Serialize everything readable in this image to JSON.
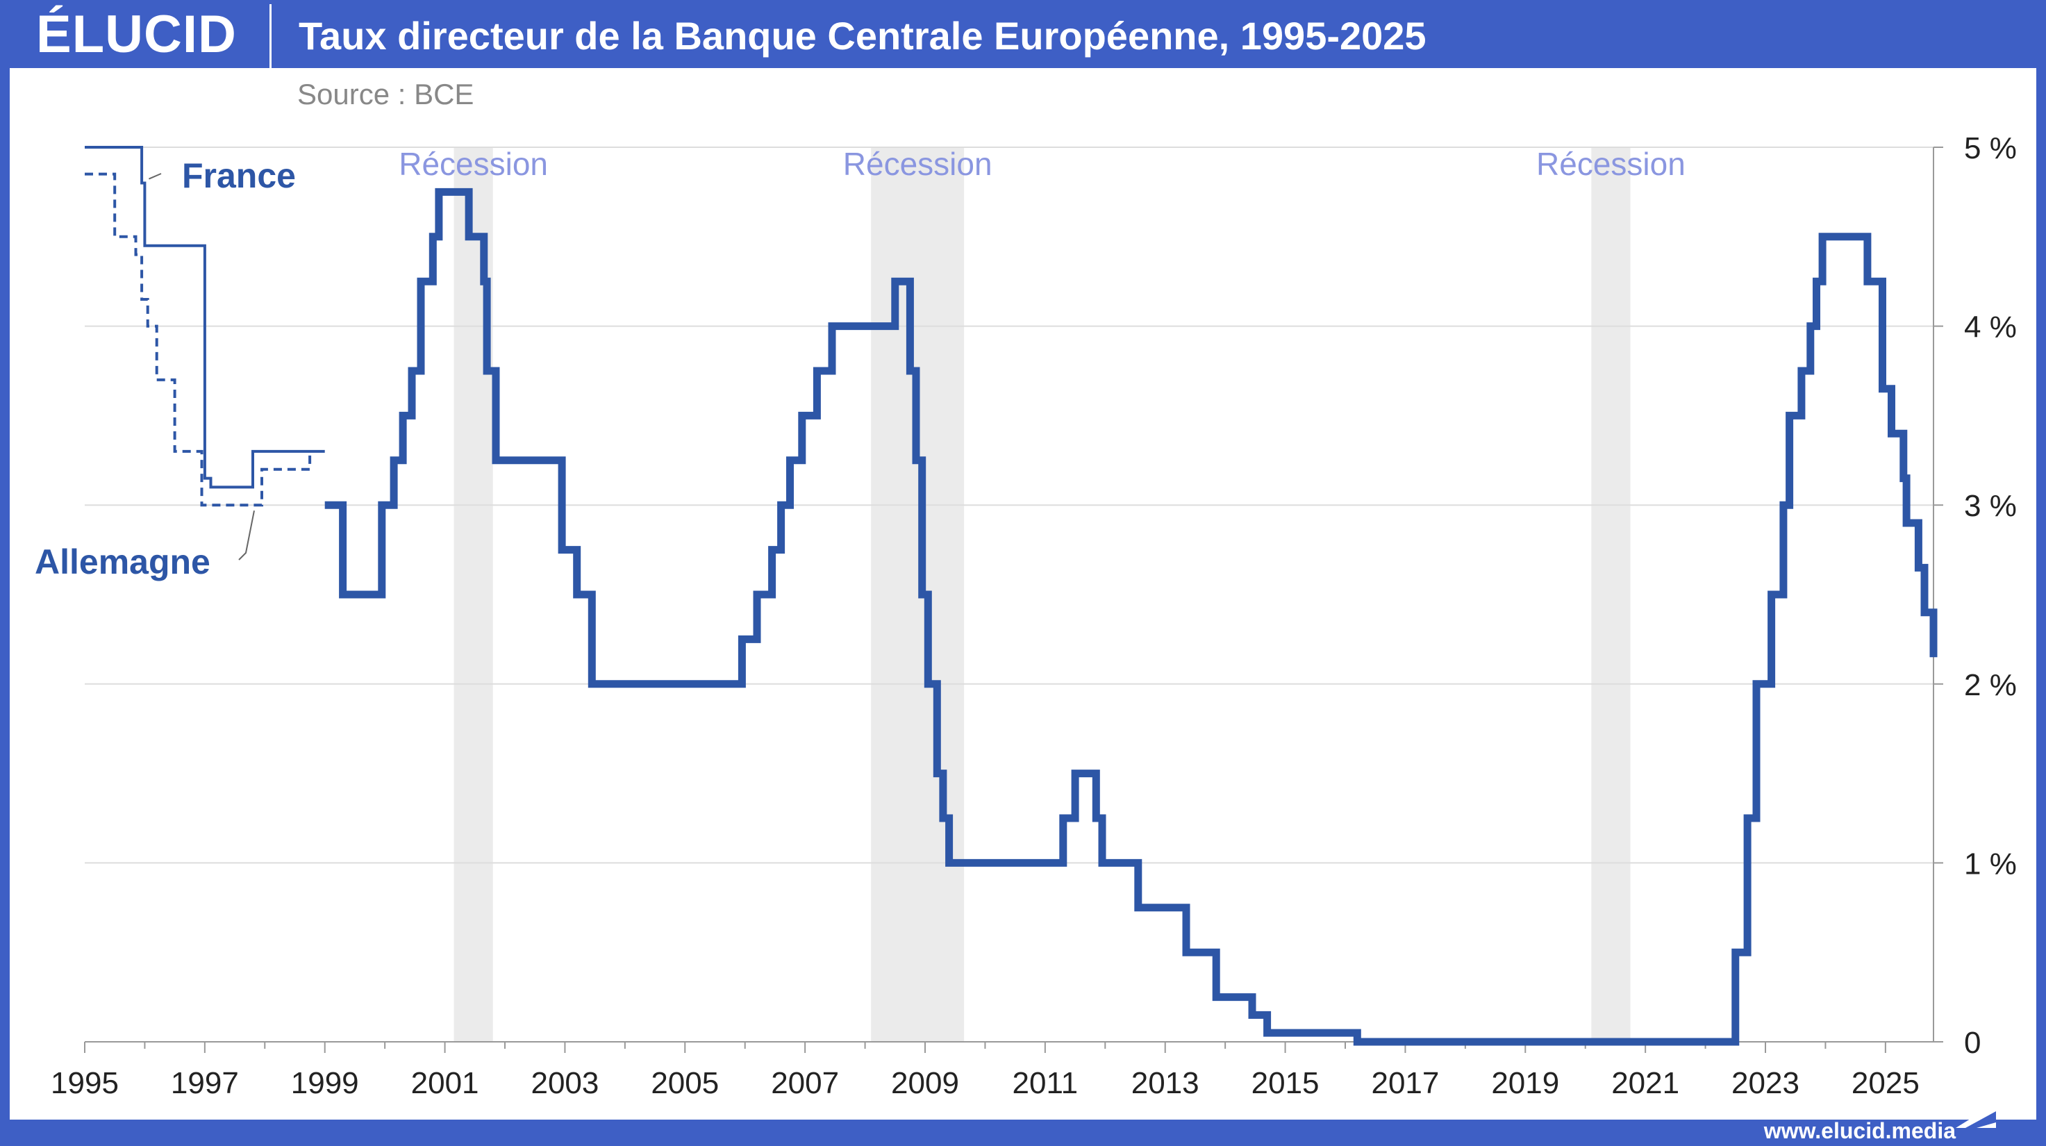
{
  "header": {
    "logo": "ÉLUCID",
    "title": "Taux directeur de la Banque Centrale Européenne, 1995-2025",
    "source": "Source : BCE"
  },
  "footer": {
    "url": "www.elucid.media"
  },
  "colors": {
    "frame": "#3e5fc5",
    "line": "#2d56a6",
    "recession_band": "#ebebeb",
    "recession_label": "#8a96e0",
    "grid": "#dddddd",
    "text": "#222222"
  },
  "chart_data": {
    "type": "line",
    "title": "Taux directeur de la Banque Centrale Européenne, 1995-2025",
    "xlim": [
      1995,
      2025.8
    ],
    "ylim": [
      0,
      5
    ],
    "x_ticks": [
      1995,
      1997,
      1999,
      2001,
      2003,
      2005,
      2007,
      2009,
      2011,
      2013,
      2015,
      2017,
      2019,
      2021,
      2023,
      2025
    ],
    "y_ticks": [
      {
        "value": 0,
        "label": "0"
      },
      {
        "value": 1,
        "label": "1 %"
      },
      {
        "value": 2,
        "label": "2 %"
      },
      {
        "value": 3,
        "label": "3 %"
      },
      {
        "value": 4,
        "label": "4 %"
      },
      {
        "value": 5,
        "label": "5 %"
      }
    ],
    "grid": true,
    "recessions": [
      {
        "start": 2001.15,
        "end": 2001.8,
        "label": "Récession"
      },
      {
        "start": 2008.1,
        "end": 2009.65,
        "label": "Récession"
      },
      {
        "start": 2020.1,
        "end": 2020.75,
        "label": "Récession"
      }
    ],
    "series": [
      {
        "name": "France",
        "style": "thin",
        "points": [
          [
            1995.0,
            5.0
          ],
          [
            1995.95,
            5.0
          ],
          [
            1995.95,
            4.8
          ],
          [
            1996.0,
            4.8
          ],
          [
            1996.0,
            4.45
          ],
          [
            1997.0,
            4.45
          ],
          [
            1997.0,
            3.15
          ],
          [
            1997.1,
            3.15
          ],
          [
            1997.1,
            3.1
          ],
          [
            1997.8,
            3.1
          ],
          [
            1997.8,
            3.3
          ],
          [
            1999.0,
            3.3
          ]
        ]
      },
      {
        "name": "Allemagne",
        "style": "dashed",
        "points": [
          [
            1995.0,
            4.85
          ],
          [
            1995.5,
            4.85
          ],
          [
            1995.5,
            4.5
          ],
          [
            1995.85,
            4.5
          ],
          [
            1995.85,
            4.4
          ],
          [
            1995.95,
            4.4
          ],
          [
            1995.95,
            4.15
          ],
          [
            1996.05,
            4.15
          ],
          [
            1996.05,
            4.0
          ],
          [
            1996.2,
            4.0
          ],
          [
            1996.2,
            3.7
          ],
          [
            1996.5,
            3.7
          ],
          [
            1996.5,
            3.3
          ],
          [
            1996.95,
            3.3
          ],
          [
            1996.95,
            3.0
          ],
          [
            1997.95,
            3.0
          ],
          [
            1997.95,
            3.2
          ],
          [
            1998.75,
            3.2
          ],
          [
            1998.75,
            3.3
          ]
        ]
      },
      {
        "name": "BCE",
        "style": "thick",
        "points": [
          [
            1999.0,
            3.0
          ],
          [
            1999.3,
            3.0
          ],
          [
            1999.3,
            2.5
          ],
          [
            1999.95,
            2.5
          ],
          [
            1999.95,
            3.0
          ],
          [
            2000.15,
            3.0
          ],
          [
            2000.15,
            3.25
          ],
          [
            2000.3,
            3.25
          ],
          [
            2000.3,
            3.5
          ],
          [
            2000.45,
            3.5
          ],
          [
            2000.45,
            3.75
          ],
          [
            2000.6,
            3.75
          ],
          [
            2000.6,
            4.25
          ],
          [
            2000.8,
            4.25
          ],
          [
            2000.8,
            4.5
          ],
          [
            2000.9,
            4.5
          ],
          [
            2000.9,
            4.75
          ],
          [
            2001.4,
            4.75
          ],
          [
            2001.4,
            4.5
          ],
          [
            2001.65,
            4.5
          ],
          [
            2001.65,
            4.25
          ],
          [
            2001.7,
            4.25
          ],
          [
            2001.7,
            3.75
          ],
          [
            2001.85,
            3.75
          ],
          [
            2001.85,
            3.25
          ],
          [
            2002.95,
            3.25
          ],
          [
            2002.95,
            2.75
          ],
          [
            2003.2,
            2.75
          ],
          [
            2003.2,
            2.5
          ],
          [
            2003.45,
            2.5
          ],
          [
            2003.45,
            2.0
          ],
          [
            2005.95,
            2.0
          ],
          [
            2005.95,
            2.25
          ],
          [
            2006.2,
            2.25
          ],
          [
            2006.2,
            2.5
          ],
          [
            2006.45,
            2.5
          ],
          [
            2006.45,
            2.75
          ],
          [
            2006.6,
            2.75
          ],
          [
            2006.6,
            3.0
          ],
          [
            2006.75,
            3.0
          ],
          [
            2006.75,
            3.25
          ],
          [
            2006.95,
            3.25
          ],
          [
            2006.95,
            3.5
          ],
          [
            2007.2,
            3.5
          ],
          [
            2007.2,
            3.75
          ],
          [
            2007.45,
            3.75
          ],
          [
            2007.45,
            4.0
          ],
          [
            2008.5,
            4.0
          ],
          [
            2008.5,
            4.25
          ],
          [
            2008.75,
            4.25
          ],
          [
            2008.75,
            3.75
          ],
          [
            2008.85,
            3.75
          ],
          [
            2008.85,
            3.25
          ],
          [
            2008.95,
            3.25
          ],
          [
            2008.95,
            2.5
          ],
          [
            2009.05,
            2.5
          ],
          [
            2009.05,
            2.0
          ],
          [
            2009.2,
            2.0
          ],
          [
            2009.2,
            1.5
          ],
          [
            2009.3,
            1.5
          ],
          [
            2009.3,
            1.25
          ],
          [
            2009.4,
            1.25
          ],
          [
            2009.4,
            1.0
          ],
          [
            2011.3,
            1.0
          ],
          [
            2011.3,
            1.25
          ],
          [
            2011.5,
            1.25
          ],
          [
            2011.5,
            1.5
          ],
          [
            2011.85,
            1.5
          ],
          [
            2011.85,
            1.25
          ],
          [
            2011.95,
            1.25
          ],
          [
            2011.95,
            1.0
          ],
          [
            2012.55,
            1.0
          ],
          [
            2012.55,
            0.75
          ],
          [
            2013.35,
            0.75
          ],
          [
            2013.35,
            0.5
          ],
          [
            2013.85,
            0.5
          ],
          [
            2013.85,
            0.25
          ],
          [
            2014.45,
            0.25
          ],
          [
            2014.45,
            0.15
          ],
          [
            2014.7,
            0.15
          ],
          [
            2014.7,
            0.05
          ],
          [
            2016.2,
            0.05
          ],
          [
            2016.2,
            0.0
          ],
          [
            2022.5,
            0.0
          ],
          [
            2022.5,
            0.5
          ],
          [
            2022.7,
            0.5
          ],
          [
            2022.7,
            1.25
          ],
          [
            2022.85,
            1.25
          ],
          [
            2022.85,
            2.0
          ],
          [
            2022.95,
            2.0
          ],
          [
            2022.95,
            2.0
          ],
          [
            2023.1,
            2.0
          ],
          [
            2023.1,
            2.5
          ],
          [
            2023.3,
            2.5
          ],
          [
            2023.3,
            3.0
          ],
          [
            2023.4,
            3.0
          ],
          [
            2023.4,
            3.5
          ],
          [
            2023.6,
            3.5
          ],
          [
            2023.6,
            3.75
          ],
          [
            2023.75,
            3.75
          ],
          [
            2023.75,
            4.0
          ],
          [
            2023.85,
            4.0
          ],
          [
            2023.85,
            4.25
          ],
          [
            2023.95,
            4.25
          ],
          [
            2023.95,
            4.5
          ],
          [
            2024.7,
            4.5
          ],
          [
            2024.7,
            4.25
          ],
          [
            2024.95,
            4.25
          ],
          [
            2024.95,
            3.65
          ],
          [
            2025.1,
            3.65
          ],
          [
            2025.1,
            3.4
          ],
          [
            2025.3,
            3.4
          ],
          [
            2025.3,
            3.15
          ],
          [
            2025.35,
            3.15
          ],
          [
            2025.35,
            2.9
          ],
          [
            2025.55,
            2.9
          ],
          [
            2025.55,
            2.65
          ],
          [
            2025.65,
            2.65
          ],
          [
            2025.65,
            2.4
          ],
          [
            2025.85,
            2.4
          ],
          [
            2025.85,
            2.15
          ],
          [
            2026.2,
            2.15
          ]
        ]
      }
    ],
    "annotations": [
      {
        "text": "France",
        "series": "France"
      },
      {
        "text": "Allemagne",
        "series": "Allemagne"
      }
    ]
  }
}
